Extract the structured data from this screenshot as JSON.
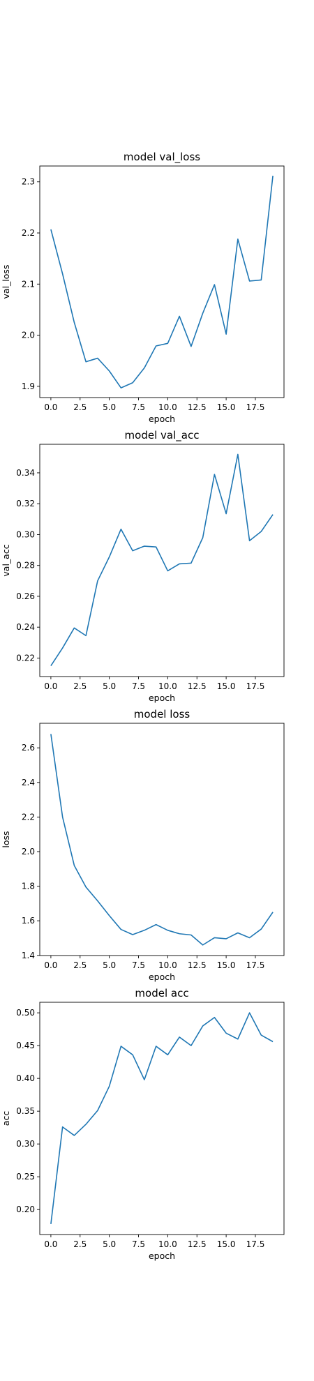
{
  "chart_data": [
    {
      "type": "line",
      "title": "model val_loss",
      "xlabel": "epoch",
      "ylabel": "val_loss",
      "x": [
        0,
        1,
        2,
        3,
        4,
        5,
        6,
        7,
        8,
        9,
        10,
        11,
        12,
        13,
        14,
        15,
        16,
        17,
        18,
        19
      ],
      "series": [
        {
          "values": [
            2.207,
            2.12,
            2.025,
            1.948,
            1.955,
            1.93,
            1.897,
            1.907,
            1.936,
            1.979,
            1.984,
            2.037,
            1.978,
            2.043,
            2.099,
            2.002,
            2.188,
            2.106,
            2.108,
            2.312
          ]
        }
      ],
      "xlim": [
        -0.95,
        19.95
      ],
      "ylim": [
        1.878,
        2.331
      ],
      "xticks": [
        0,
        2.5,
        5,
        7.5,
        10,
        12.5,
        15,
        17.5
      ],
      "xtick_labels": [
        "0.0",
        "2.5",
        "5.0",
        "7.5",
        "10.0",
        "12.5",
        "15.0",
        "17.5"
      ],
      "yticks": [
        1.9,
        2.0,
        2.1,
        2.2,
        2.3
      ],
      "ytick_labels": [
        "1.9",
        "2.0",
        "2.1",
        "2.2",
        "2.3"
      ],
      "color": "#1f77b4",
      "grid": false
    },
    {
      "type": "line",
      "title": "model val_acc",
      "xlabel": "epoch",
      "ylabel": "val_acc",
      "x": [
        0,
        1,
        2,
        3,
        4,
        5,
        6,
        7,
        8,
        9,
        10,
        11,
        12,
        13,
        14,
        15,
        16,
        17,
        18,
        19
      ],
      "series": [
        {
          "values": [
            0.215,
            0.2265,
            0.2395,
            0.2345,
            0.27,
            0.2855,
            0.3035,
            0.2895,
            0.2925,
            0.292,
            0.2765,
            0.281,
            0.2815,
            0.298,
            0.339,
            0.3135,
            0.352,
            0.296,
            0.302,
            0.313
          ]
        }
      ],
      "xlim": [
        -0.95,
        19.95
      ],
      "ylim": [
        0.208,
        0.3585
      ],
      "xticks": [
        0,
        2.5,
        5,
        7.5,
        10,
        12.5,
        15,
        17.5
      ],
      "xtick_labels": [
        "0.0",
        "2.5",
        "5.0",
        "7.5",
        "10.0",
        "12.5",
        "15.0",
        "17.5"
      ],
      "yticks": [
        0.22,
        0.24,
        0.26,
        0.28,
        0.3,
        0.32,
        0.34
      ],
      "ytick_labels": [
        "0.22",
        "0.24",
        "0.26",
        "0.28",
        "0.30",
        "0.32",
        "0.34"
      ],
      "color": "#1f77b4",
      "grid": false
    },
    {
      "type": "line",
      "title": "model loss",
      "xlabel": "epoch",
      "ylabel": "loss",
      "x": [
        0,
        1,
        2,
        3,
        4,
        5,
        6,
        7,
        8,
        9,
        10,
        11,
        12,
        13,
        14,
        15,
        16,
        17,
        18,
        19
      ],
      "series": [
        {
          "values": [
            2.68,
            2.2,
            1.92,
            1.795,
            1.715,
            1.63,
            1.55,
            1.52,
            1.545,
            1.578,
            1.545,
            1.525,
            1.518,
            1.46,
            1.502,
            1.496,
            1.53,
            1.502,
            1.552,
            1.65
          ]
        }
      ],
      "xlim": [
        -0.95,
        19.95
      ],
      "ylim": [
        1.399,
        2.742
      ],
      "xticks": [
        0,
        2.5,
        5,
        7.5,
        10,
        12.5,
        15,
        17.5
      ],
      "xtick_labels": [
        "0.0",
        "2.5",
        "5.0",
        "7.5",
        "10.0",
        "12.5",
        "15.0",
        "17.5"
      ],
      "yticks": [
        1.4,
        1.6,
        1.8,
        2.0,
        2.2,
        2.4,
        2.6
      ],
      "ytick_labels": [
        "1.4",
        "1.6",
        "1.8",
        "2.0",
        "2.2",
        "2.4",
        "2.6"
      ],
      "color": "#1f77b4",
      "grid": false
    },
    {
      "type": "line",
      "title": "model acc",
      "xlabel": "epoch",
      "ylabel": "acc",
      "x": [
        0,
        1,
        2,
        3,
        4,
        5,
        6,
        7,
        8,
        9,
        10,
        11,
        12,
        13,
        14,
        15,
        16,
        17,
        18,
        19
      ],
      "series": [
        {
          "values": [
            0.178,
            0.326,
            0.313,
            0.33,
            0.351,
            0.388,
            0.449,
            0.436,
            0.398,
            0.449,
            0.436,
            0.463,
            0.45,
            0.48,
            0.493,
            0.469,
            0.46,
            0.5,
            0.466,
            0.456
          ]
        }
      ],
      "xlim": [
        -0.95,
        19.95
      ],
      "ylim": [
        0.1619,
        0.5161
      ],
      "xticks": [
        0,
        2.5,
        5,
        7.5,
        10,
        12.5,
        15,
        17.5
      ],
      "xtick_labels": [
        "0.0",
        "2.5",
        "5.0",
        "7.5",
        "10.0",
        "12.5",
        "15.0",
        "17.5"
      ],
      "yticks": [
        0.2,
        0.25,
        0.3,
        0.35,
        0.4,
        0.45,
        0.5
      ],
      "ytick_labels": [
        "0.20",
        "0.25",
        "0.30",
        "0.35",
        "0.40",
        "0.45",
        "0.50"
      ],
      "color": "#1f77b4",
      "grid": false
    }
  ]
}
